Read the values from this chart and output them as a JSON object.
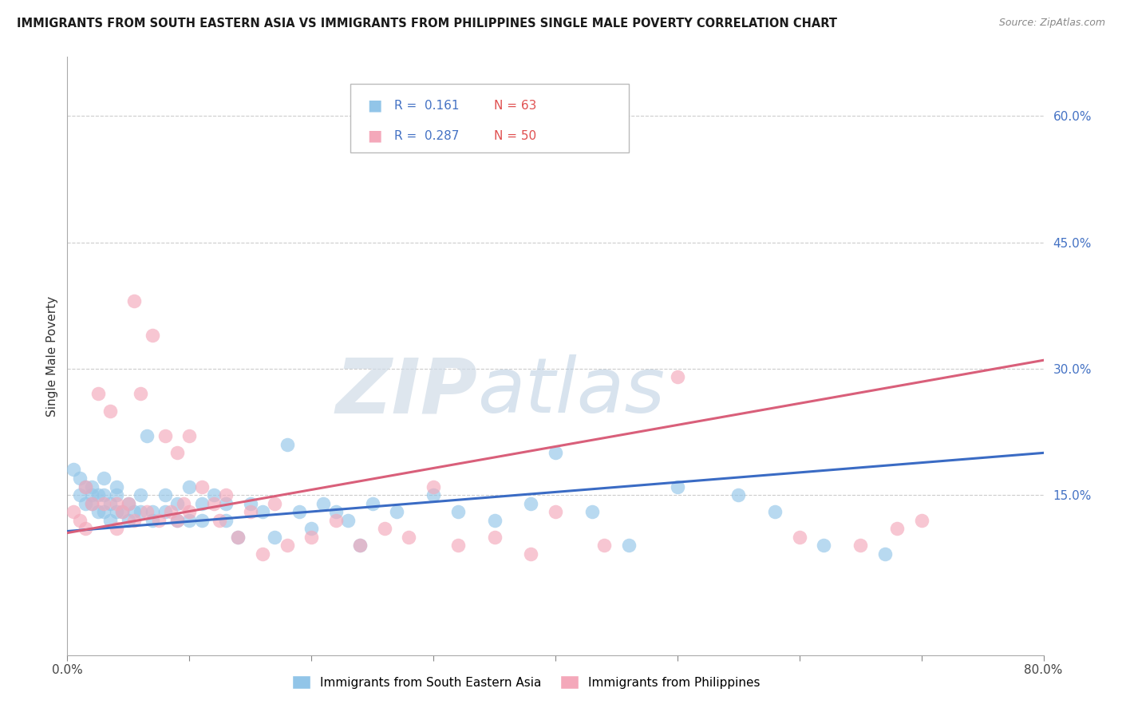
{
  "title": "IMMIGRANTS FROM SOUTH EASTERN ASIA VS IMMIGRANTS FROM PHILIPPINES SINGLE MALE POVERTY CORRELATION CHART",
  "source": "Source: ZipAtlas.com",
  "ylabel": "Single Male Poverty",
  "ylabel_right_ticks": [
    "60.0%",
    "45.0%",
    "30.0%",
    "15.0%"
  ],
  "ylabel_right_vals": [
    0.6,
    0.45,
    0.3,
    0.15
  ],
  "xlim": [
    0.0,
    0.8
  ],
  "ylim": [
    -0.04,
    0.67
  ],
  "legend1_label": "Immigrants from South Eastern Asia",
  "legend2_label": "Immigrants from Philippines",
  "R1": 0.161,
  "N1": 63,
  "R2": 0.287,
  "N2": 50,
  "color_blue": "#92C5E8",
  "color_pink": "#F4A8BA",
  "line_blue": "#3A6BC4",
  "line_pink": "#D95F7A",
  "watermark_zip": "ZIP",
  "watermark_atlas": "atlas",
  "sea_x": [
    0.005,
    0.01,
    0.01,
    0.015,
    0.015,
    0.02,
    0.02,
    0.02,
    0.025,
    0.025,
    0.03,
    0.03,
    0.03,
    0.035,
    0.035,
    0.04,
    0.04,
    0.04,
    0.045,
    0.05,
    0.05,
    0.055,
    0.06,
    0.06,
    0.065,
    0.07,
    0.07,
    0.08,
    0.08,
    0.09,
    0.09,
    0.1,
    0.1,
    0.11,
    0.11,
    0.12,
    0.13,
    0.13,
    0.14,
    0.15,
    0.16,
    0.17,
    0.18,
    0.19,
    0.2,
    0.21,
    0.22,
    0.23,
    0.24,
    0.25,
    0.27,
    0.3,
    0.32,
    0.35,
    0.38,
    0.4,
    0.43,
    0.46,
    0.5,
    0.55,
    0.58,
    0.62,
    0.67
  ],
  "sea_y": [
    0.18,
    0.17,
    0.15,
    0.16,
    0.14,
    0.16,
    0.15,
    0.14,
    0.15,
    0.13,
    0.17,
    0.15,
    0.13,
    0.14,
    0.12,
    0.16,
    0.15,
    0.13,
    0.13,
    0.14,
    0.12,
    0.13,
    0.15,
    0.13,
    0.22,
    0.13,
    0.12,
    0.15,
    0.13,
    0.14,
    0.12,
    0.16,
    0.12,
    0.14,
    0.12,
    0.15,
    0.14,
    0.12,
    0.1,
    0.14,
    0.13,
    0.1,
    0.21,
    0.13,
    0.11,
    0.14,
    0.13,
    0.12,
    0.09,
    0.14,
    0.13,
    0.15,
    0.13,
    0.12,
    0.14,
    0.2,
    0.13,
    0.09,
    0.16,
    0.15,
    0.13,
    0.09,
    0.08
  ],
  "phil_x": [
    0.005,
    0.01,
    0.015,
    0.015,
    0.02,
    0.025,
    0.03,
    0.035,
    0.04,
    0.04,
    0.045,
    0.05,
    0.055,
    0.055,
    0.06,
    0.065,
    0.07,
    0.075,
    0.08,
    0.085,
    0.09,
    0.09,
    0.095,
    0.1,
    0.1,
    0.11,
    0.12,
    0.125,
    0.13,
    0.14,
    0.15,
    0.16,
    0.17,
    0.18,
    0.2,
    0.22,
    0.24,
    0.26,
    0.28,
    0.3,
    0.32,
    0.35,
    0.38,
    0.4,
    0.44,
    0.5,
    0.6,
    0.65,
    0.68,
    0.7
  ],
  "phil_y": [
    0.13,
    0.12,
    0.16,
    0.11,
    0.14,
    0.27,
    0.14,
    0.25,
    0.14,
    0.11,
    0.13,
    0.14,
    0.38,
    0.12,
    0.27,
    0.13,
    0.34,
    0.12,
    0.22,
    0.13,
    0.2,
    0.12,
    0.14,
    0.22,
    0.13,
    0.16,
    0.14,
    0.12,
    0.15,
    0.1,
    0.13,
    0.08,
    0.14,
    0.09,
    0.1,
    0.12,
    0.09,
    0.11,
    0.1,
    0.16,
    0.09,
    0.1,
    0.08,
    0.13,
    0.09,
    0.29,
    0.1,
    0.09,
    0.11,
    0.12
  ]
}
